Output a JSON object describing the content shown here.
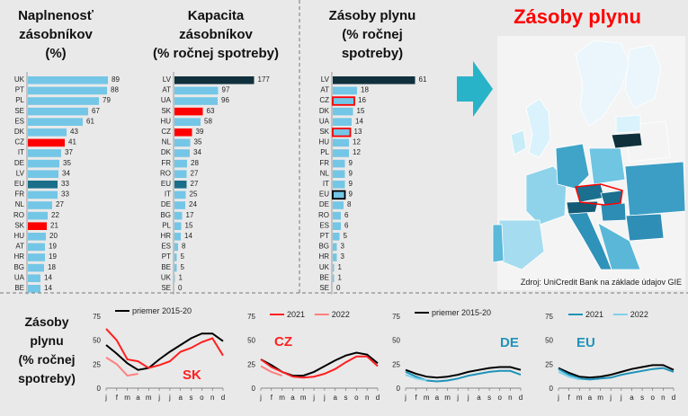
{
  "colors": {
    "background": "#e9e9e9",
    "bar": "#74c6e6",
    "highlight": "#ff0000",
    "eu": "#1a6e8a",
    "dark": "#10303c",
    "title_red": "#ff0000",
    "line_black": "#000000",
    "sk_2021": "#ff2020",
    "sk_2022": "#ff8080",
    "de_2021": "#1f93b9",
    "de_2022": "#7fd2ea"
  },
  "titles": {
    "panel1": [
      "Naplnenosť",
      "zásobníkov",
      "(%)"
    ],
    "panel2": [
      "Kapacita",
      "zásobníkov",
      "(% ročnej spotreby)"
    ],
    "panel3": [
      "Zásoby plynu",
      "(% ročnej",
      "spotreby)"
    ],
    "map": "Zásoby plynu",
    "source": "Zdroj: UniCredit Bank na základe údajov GIE",
    "bottom": [
      "Zásoby",
      "plynu",
      "(% ročnej",
      "spotreby)"
    ]
  },
  "chart_data": [
    {
      "type": "bar",
      "id": "fill",
      "categories": [
        "UK",
        "PT",
        "PL",
        "SE",
        "ES",
        "DK",
        "CZ",
        "IT",
        "DE",
        "LV",
        "EU",
        "FR",
        "NL",
        "RO",
        "SK",
        "HU",
        "AT",
        "HR",
        "BG",
        "UA",
        "BE"
      ],
      "values": [
        89,
        88,
        79,
        67,
        61,
        43,
        41,
        37,
        35,
        34,
        33,
        33,
        27,
        22,
        21,
        20,
        19,
        19,
        18,
        14,
        14
      ],
      "highlight": [
        "CZ",
        "SK"
      ],
      "eu": [
        "EU"
      ],
      "xlim": [
        0,
        100
      ]
    },
    {
      "type": "bar",
      "id": "capacity",
      "categories": [
        "LV",
        "AT",
        "UA",
        "SK",
        "HU",
        "CZ",
        "NL",
        "DK",
        "FR",
        "RO",
        "EU",
        "IT",
        "DE",
        "BG",
        "PL",
        "HR",
        "ES",
        "PT",
        "BE",
        "UK",
        "SE"
      ],
      "values": [
        177,
        97,
        96,
        63,
        58,
        39,
        35,
        34,
        28,
        27,
        27,
        25,
        24,
        17,
        15,
        14,
        8,
        5,
        5,
        1,
        0
      ],
      "highlight": [
        "SK",
        "CZ"
      ],
      "eu": [
        "EU"
      ],
      "dark": [
        "LV"
      ],
      "xlim": [
        0,
        200
      ]
    },
    {
      "type": "bar",
      "id": "stocks",
      "categories": [
        "LV",
        "AT",
        "CZ",
        "DK",
        "UA",
        "SK",
        "HU",
        "PL",
        "FR",
        "NL",
        "IT",
        "EU",
        "DE",
        "RO",
        "ES",
        "PT",
        "BG",
        "HR",
        "UK",
        "BE",
        "SE"
      ],
      "values": [
        61,
        18,
        16,
        15,
        14,
        13,
        12,
        12,
        9,
        9,
        9,
        9,
        8,
        6,
        6,
        5,
        3,
        3,
        1,
        1,
        0
      ],
      "outlined_red": [
        "CZ",
        "SK"
      ],
      "outlined_black": [
        "EU"
      ],
      "dark": [
        "LV"
      ],
      "xlim": [
        0,
        70
      ]
    },
    {
      "type": "line",
      "id": "SK",
      "label": "SK",
      "ylim": [
        0,
        75
      ],
      "yticks": [
        0,
        25,
        50,
        75
      ],
      "x": [
        "j",
        "f",
        "m",
        "a",
        "m",
        "j",
        "j",
        "a",
        "s",
        "o",
        "n",
        "d"
      ],
      "legend": [
        "priemer 2015-20"
      ],
      "series": [
        {
          "name": "priemer 2015-20",
          "values": [
            45,
            36,
            26,
            19,
            21,
            30,
            38,
            45,
            52,
            57,
            57,
            49
          ]
        },
        {
          "name": "2021",
          "values": [
            62,
            50,
            30,
            28,
            21,
            24,
            28,
            38,
            42,
            48,
            52,
            34
          ]
        },
        {
          "name": "2022",
          "values": [
            32,
            25,
            13,
            15,
            null,
            null,
            null,
            null,
            null,
            null,
            null,
            null
          ]
        }
      ]
    },
    {
      "type": "line",
      "id": "CZ",
      "label": "CZ",
      "ylim": [
        0,
        75
      ],
      "yticks": [
        0,
        25,
        50,
        75
      ],
      "x": [
        "j",
        "f",
        "m",
        "a",
        "m",
        "j",
        "j",
        "a",
        "s",
        "o",
        "n",
        "d"
      ],
      "legend": [
        "2021",
        "2022"
      ],
      "series": [
        {
          "name": "priemer 2015-20",
          "values": [
            30,
            24,
            17,
            13,
            13,
            17,
            23,
            29,
            34,
            37,
            35,
            26
          ]
        },
        {
          "name": "2021",
          "values": [
            30,
            22,
            17,
            12,
            11,
            12,
            15,
            20,
            27,
            33,
            33,
            23
          ]
        },
        {
          "name": "2022",
          "values": [
            23,
            17,
            13,
            null,
            null,
            null,
            null,
            null,
            null,
            null,
            null,
            null
          ]
        }
      ]
    },
    {
      "type": "line",
      "id": "DE",
      "label": "DE",
      "ylim": [
        0,
        75
      ],
      "yticks": [
        0,
        25,
        50,
        75
      ],
      "x": [
        "j",
        "f",
        "m",
        "a",
        "m",
        "j",
        "j",
        "a",
        "s",
        "o",
        "n",
        "d"
      ],
      "legend": [
        "priemer 2015-20"
      ],
      "series": [
        {
          "name": "priemer 2015-20",
          "values": [
            19,
            15,
            12,
            11,
            12,
            14,
            17,
            19,
            21,
            22,
            22,
            19
          ]
        },
        {
          "name": "2021",
          "values": [
            17,
            12,
            8,
            7,
            8,
            10,
            13,
            15,
            17,
            18,
            18,
            14
          ]
        },
        {
          "name": "2022",
          "values": [
            14,
            10,
            8,
            null,
            null,
            null,
            null,
            null,
            null,
            null,
            null,
            null
          ]
        }
      ]
    },
    {
      "type": "line",
      "id": "EU",
      "label": "EU",
      "ylim": [
        0,
        75
      ],
      "yticks": [
        0,
        25,
        50,
        75
      ],
      "x": [
        "j",
        "f",
        "m",
        "a",
        "m",
        "j",
        "j",
        "a",
        "s",
        "o",
        "n",
        "d"
      ],
      "legend": [
        "2021",
        "2022"
      ],
      "series": [
        {
          "name": "priemer 2015-20",
          "values": [
            21,
            16,
            12,
            11,
            12,
            14,
            17,
            20,
            22,
            24,
            24,
            19
          ]
        },
        {
          "name": "2021",
          "values": [
            20,
            14,
            10,
            9,
            10,
            11,
            14,
            16,
            18,
            20,
            21,
            17
          ]
        },
        {
          "name": "2022",
          "values": [
            17,
            12,
            9,
            null,
            null,
            null,
            null,
            null,
            null,
            null,
            null,
            null
          ]
        }
      ]
    }
  ]
}
